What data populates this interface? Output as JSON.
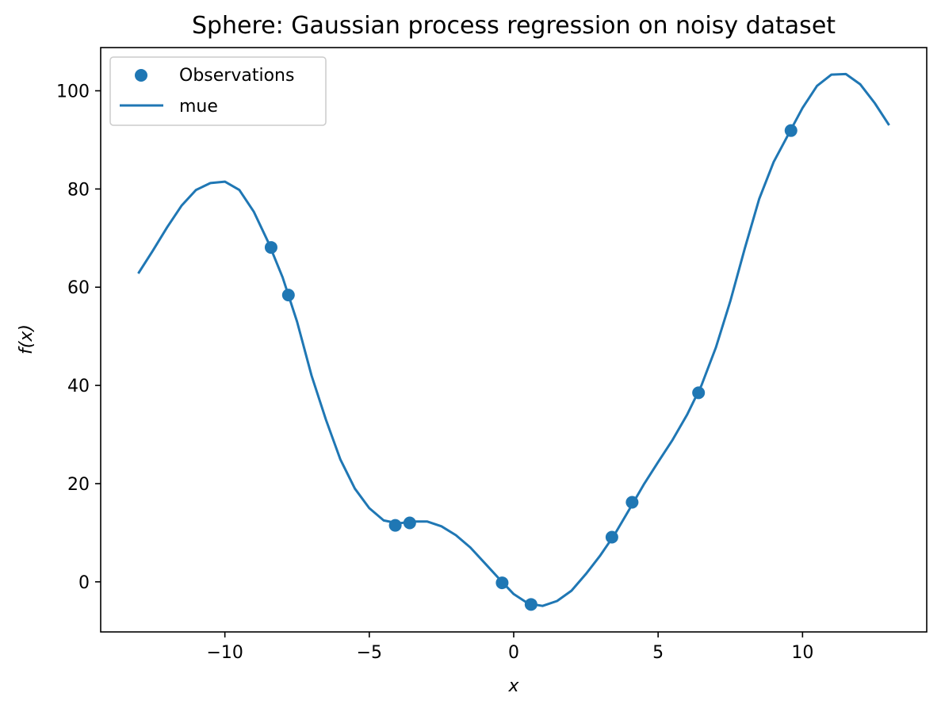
{
  "chart_data": {
    "type": "line",
    "title": "Sphere: Gaussian process regression on noisy dataset",
    "xlabel": "x",
    "ylabel": "f(x)",
    "xlim": [
      -14.3,
      14.3
    ],
    "ylim": [
      -10.2,
      108.8
    ],
    "x_ticks": [
      {
        "value": -10,
        "label": "−10"
      },
      {
        "value": -5,
        "label": "−5"
      },
      {
        "value": 0,
        "label": "0"
      },
      {
        "value": 5,
        "label": "5"
      },
      {
        "value": 10,
        "label": "10"
      }
    ],
    "y_ticks": [
      {
        "value": 0,
        "label": "0"
      },
      {
        "value": 20,
        "label": "20"
      },
      {
        "value": 40,
        "label": "40"
      },
      {
        "value": 60,
        "label": "60"
      },
      {
        "value": 80,
        "label": "80"
      },
      {
        "value": 100,
        "label": "100"
      }
    ],
    "grid": false,
    "legend_position": "upper-left",
    "colors": {
      "series": "#1f77b4",
      "axes": "#000000"
    },
    "series": [
      {
        "name": "Observations",
        "kind": "scatter",
        "points": [
          {
            "x": -8.4,
            "y": 68.1
          },
          {
            "x": -7.8,
            "y": 58.4
          },
          {
            "x": -4.1,
            "y": 11.5
          },
          {
            "x": -3.6,
            "y": 12.0
          },
          {
            "x": -0.4,
            "y": -0.2
          },
          {
            "x": 0.6,
            "y": -4.6
          },
          {
            "x": 3.4,
            "y": 9.1
          },
          {
            "x": 4.1,
            "y": 16.2
          },
          {
            "x": 6.4,
            "y": 38.5
          },
          {
            "x": 9.6,
            "y": 91.9
          }
        ]
      },
      {
        "name": "mue",
        "kind": "line",
        "points": [
          {
            "x": -13.0,
            "y": 62.8
          },
          {
            "x": -12.5,
            "y": 67.4
          },
          {
            "x": -12.0,
            "y": 72.2
          },
          {
            "x": -11.5,
            "y": 76.6
          },
          {
            "x": -11.0,
            "y": 79.8
          },
          {
            "x": -10.5,
            "y": 81.2
          },
          {
            "x": -10.0,
            "y": 81.5
          },
          {
            "x": -9.5,
            "y": 79.8
          },
          {
            "x": -9.0,
            "y": 75.4
          },
          {
            "x": -8.5,
            "y": 69.2
          },
          {
            "x": -8.0,
            "y": 62.0
          },
          {
            "x": -7.5,
            "y": 53.0
          },
          {
            "x": -7.0,
            "y": 42.0
          },
          {
            "x": -6.5,
            "y": 33.0
          },
          {
            "x": -6.0,
            "y": 24.9
          },
          {
            "x": -5.5,
            "y": 19.0
          },
          {
            "x": -5.0,
            "y": 15.0
          },
          {
            "x": -4.5,
            "y": 12.5
          },
          {
            "x": -4.0,
            "y": 11.9
          },
          {
            "x": -3.5,
            "y": 12.3
          },
          {
            "x": -3.0,
            "y": 12.3
          },
          {
            "x": -2.5,
            "y": 11.3
          },
          {
            "x": -2.0,
            "y": 9.5
          },
          {
            "x": -1.5,
            "y": 7.0
          },
          {
            "x": -1.0,
            "y": 3.8
          },
          {
            "x": -0.5,
            "y": 0.6
          },
          {
            "x": 0.0,
            "y": -2.5
          },
          {
            "x": 0.5,
            "y": -4.4
          },
          {
            "x": 1.0,
            "y": -4.9
          },
          {
            "x": 1.5,
            "y": -3.9
          },
          {
            "x": 2.0,
            "y": -1.8
          },
          {
            "x": 2.5,
            "y": 1.6
          },
          {
            "x": 3.0,
            "y": 5.4
          },
          {
            "x": 3.5,
            "y": 9.7
          },
          {
            "x": 4.0,
            "y": 14.7
          },
          {
            "x": 4.5,
            "y": 19.8
          },
          {
            "x": 5.0,
            "y": 24.4
          },
          {
            "x": 5.5,
            "y": 28.9
          },
          {
            "x": 6.0,
            "y": 34.0
          },
          {
            "x": 6.5,
            "y": 40.0
          },
          {
            "x": 7.0,
            "y": 47.7
          },
          {
            "x": 7.5,
            "y": 57.2
          },
          {
            "x": 8.0,
            "y": 67.9
          },
          {
            "x": 8.5,
            "y": 78.0
          },
          {
            "x": 9.0,
            "y": 85.5
          },
          {
            "x": 9.5,
            "y": 91.0
          },
          {
            "x": 10.0,
            "y": 96.5
          },
          {
            "x": 10.5,
            "y": 101.0
          },
          {
            "x": 11.0,
            "y": 103.3
          },
          {
            "x": 11.5,
            "y": 103.4
          },
          {
            "x": 12.0,
            "y": 101.3
          },
          {
            "x": 12.5,
            "y": 97.5
          },
          {
            "x": 13.0,
            "y": 93.0
          }
        ]
      }
    ]
  }
}
